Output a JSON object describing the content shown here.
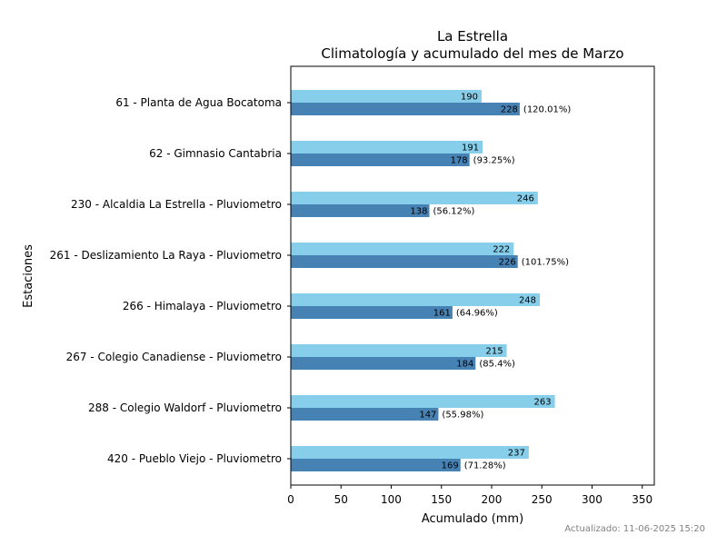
{
  "chart_data": {
    "type": "bar",
    "orientation": "horizontal",
    "title": "La Estrella",
    "subtitle": "Climatología y acumulado del mes de Marzo",
    "xlabel": "Acumulado (mm)",
    "ylabel": "Estaciones",
    "xlim": [
      0,
      362
    ],
    "x_ticks": [
      0,
      50,
      100,
      150,
      200,
      250,
      300,
      350
    ],
    "grid": false,
    "categories": [
      "61 - Planta de Agua Bocatoma",
      "62 - Gimnasio Cantabria",
      "230 - Alcaldia La Estrella - Pluviometro",
      "261 - Deslizamiento La Raya - Pluviometro",
      "266 - Himalaya - Pluviometro",
      "267 - Colegio Canadiense - Pluviometro",
      "288 - Colegio Waldorf - Pluviometro",
      "420 - Pueblo Viejo - Pluviometro"
    ],
    "series": [
      {
        "role": "climatology",
        "color": "#87ceeb",
        "values": [
          190,
          191,
          246,
          222,
          248,
          215,
          263,
          237
        ]
      },
      {
        "role": "accumulated",
        "color": "#4682b4",
        "values": [
          228,
          178,
          138,
          226,
          161,
          184,
          147,
          169
        ],
        "percent_labels": [
          "(120.01%)",
          "(93.25%)",
          "(56.12%)",
          "(101.75%)",
          "(64.96%)",
          "(85.4%)",
          "(55.98%)",
          "(71.28%)"
        ]
      }
    ]
  },
  "footer": {
    "updated": "Actualizado: 11-06-2025 15:20"
  }
}
